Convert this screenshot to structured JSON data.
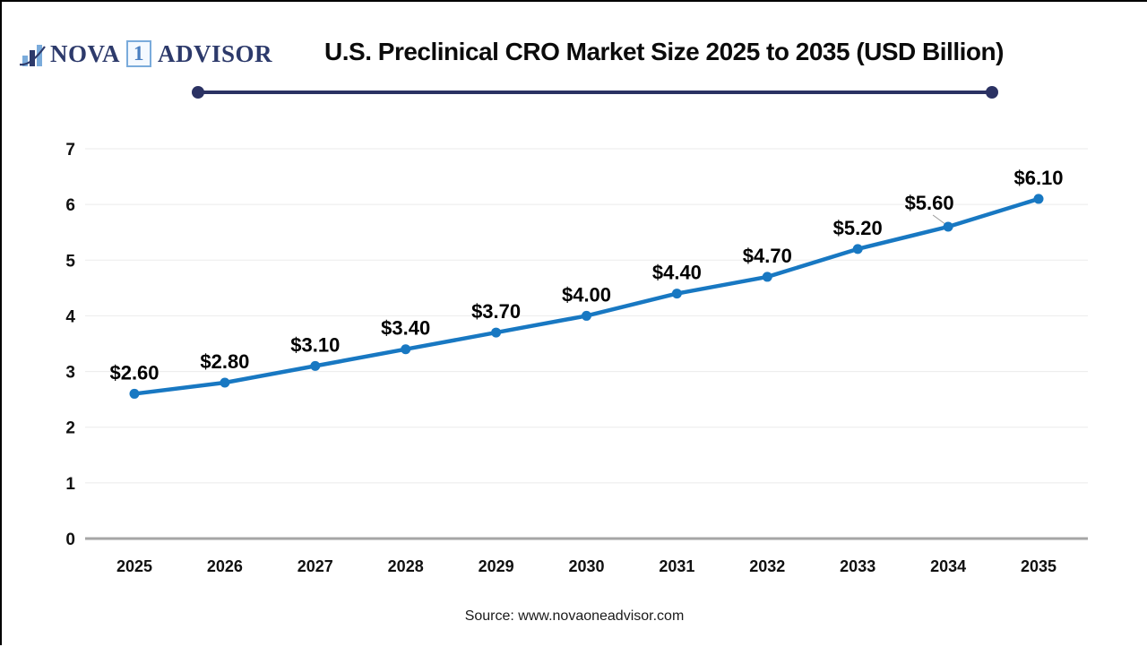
{
  "logo": {
    "name_part1": "NOVA",
    "badge": "1",
    "name_part2": "ADVISOR"
  },
  "header": {
    "title": "U.S. Preclinical CRO Market Size 2025 to 2035 (USD Billion)"
  },
  "footer": {
    "source": "Source: www.novaoneadvisor.com"
  },
  "colors": {
    "line": "#1878c2",
    "marker": "#1878c2",
    "grid": "#ebebeb",
    "zero_axis": "#a6a6a6",
    "tick_text": "#111111",
    "data_label_text": "#000000",
    "title_underline": "#2b3263",
    "logo_navy": "#2d3a6b",
    "logo_light_blue": "#7aabdb",
    "leader_line": "#999999"
  },
  "chart_data": {
    "type": "line",
    "title": "U.S. Preclinical CRO Market Size 2025 to 2035 (USD Billion)",
    "categories": [
      "2025",
      "2026",
      "2027",
      "2028",
      "2029",
      "2030",
      "2031",
      "2032",
      "2033",
      "2034",
      "2035"
    ],
    "series": [
      {
        "name": "U.S. Preclinical CRO Market Size (USD Billion)",
        "values": [
          2.6,
          2.8,
          3.1,
          3.4,
          3.7,
          4.0,
          4.4,
          4.7,
          5.2,
          5.6,
          6.1
        ]
      }
    ],
    "data_labels": [
      "$2.60",
      "$2.80",
      "$3.10",
      "$3.40",
      "$3.70",
      "$4.00",
      "$4.40",
      "$4.70",
      "$5.20",
      "$5.60",
      "$6.10"
    ],
    "xlabel": "",
    "ylabel": "",
    "ylim": [
      0,
      7
    ],
    "yticks": [
      0,
      1,
      2,
      3,
      4,
      5,
      6,
      7
    ],
    "grid": "horizontal",
    "legend": "none",
    "marker": "circle",
    "label_adjustments": {
      "9": {
        "dx": -21,
        "dy": -3,
        "leader": true
      }
    }
  }
}
